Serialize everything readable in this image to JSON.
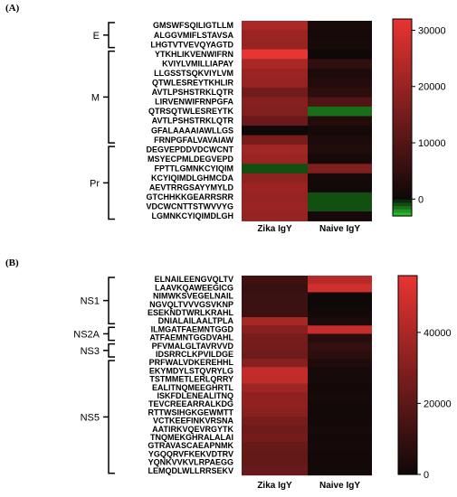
{
  "chart_data": [
    {
      "panel": "(A)",
      "type": "heatmap",
      "columns": [
        "Zika IgY",
        "Naive IgY"
      ],
      "rows": [
        "GMSWFSQILIGTLLM",
        "ALGGVMIFLSTAVSA",
        "LHGTVTVEVQYAGTD",
        "YTKHLIKVENWIFRN",
        "KVIYLVMILLIAPAY",
        "LLGSSTSQKVIYLVM",
        "QTWLESREYTKHLIR",
        "AVTLPSHSTRKLQTR",
        "LIRVENWIFRNPGFA",
        "QTRSQTWLESREYTK",
        "AVTLPSHSTRKLQTR",
        "GFALAAAAIAWLLGS",
        "FRNPGFALVAVAIAW",
        "DEGVEPDDVDCWCNT",
        "MSYECPMLDEGVEPD",
        "FPTTLGMNKCYIQIM",
        "KCYIQIMDLGHMCDA",
        "AEVTRRGSAYYMYLD",
        "GTCHHKKGEARRSRR",
        "VDCWCNTTSTWVVYG",
        "LGMNKCYIQIMDLGH"
      ],
      "groups": [
        {
          "name": "E",
          "start": 0,
          "end": 2
        },
        {
          "name": "M",
          "start": 3,
          "end": 12
        },
        {
          "name": "Pr",
          "start": 13,
          "end": 20
        }
      ],
      "values": [
        [
          22000,
          1500
        ],
        [
          20000,
          1000
        ],
        [
          19500,
          1500
        ],
        [
          31000,
          0
        ],
        [
          22000,
          5000
        ],
        [
          20000,
          2000
        ],
        [
          19000,
          3000
        ],
        [
          14000,
          4000
        ],
        [
          17000,
          9000
        ],
        [
          16000,
          -1500
        ],
        [
          13000,
          3000
        ],
        [
          0,
          1000
        ],
        [
          15000,
          2000
        ],
        [
          21000,
          2500
        ],
        [
          20000,
          1000
        ],
        [
          -1000,
          16000
        ],
        [
          18000,
          1000
        ],
        [
          20000,
          500
        ],
        [
          19000,
          -1000
        ],
        [
          20000,
          -1000
        ],
        [
          19000,
          1000
        ]
      ],
      "colorbar": {
        "min": -3000,
        "max": 32000,
        "ticks": [
          0,
          10000,
          20000,
          30000
        ]
      }
    },
    {
      "panel": "(B)",
      "type": "heatmap",
      "columns": [
        "Zika IgY",
        "Naive IgY"
      ],
      "rows": [
        "ELNAILEENGVQLTV",
        "LAAVKQAWEEGICG",
        "NIMWKSVEGELNAIL",
        "NGVQLTVVVGSVKNP",
        "ESEKNDTWRLKRAHL",
        "DNIALAILAALTPLA",
        "ILMGATFAEMNTGGD",
        "ATFAEMNTGGDVAHL",
        "PFVMALGLTAVRVVD",
        "IDSRRCLKPVILDGE",
        "PRFWALVDKEREHHL",
        "EKYMDYLSTQVRYLG",
        "TSTMMETLERLQRRY",
        "EALITNQMEEGHRTL",
        "ISKFDLENEALITNQ",
        "TEVCREEARRALKDG",
        "RTTWSIHGKGEWMTT",
        "VCTKEEFINKVRSNA",
        "AATIRKVQEVRGYTK",
        "TNQMEKGHRALALAI",
        "GTRAVASCAEAPNMK",
        "YGQQRVFKEKVDTRV",
        "YQNKVVKVLRPAEGG",
        "LEMQDLWLLRRSEKV"
      ],
      "groups": [
        {
          "name": "NS1",
          "start": 0,
          "end": 5
        },
        {
          "name": "NS2A",
          "start": 6,
          "end": 7
        },
        {
          "name": "NS3",
          "start": 8,
          "end": 9
        },
        {
          "name": "NS5",
          "start": 10,
          "end": 23
        }
      ],
      "values": [
        [
          12000,
          42000
        ],
        [
          10000,
          48000
        ],
        [
          11000,
          0
        ],
        [
          11000,
          0
        ],
        [
          11000,
          1000
        ],
        [
          38000,
          3000
        ],
        [
          30000,
          46000
        ],
        [
          26000,
          6000
        ],
        [
          25000,
          9000
        ],
        [
          24000,
          7000
        ],
        [
          30000,
          4000
        ],
        [
          45000,
          2000
        ],
        [
          44000,
          2000
        ],
        [
          36000,
          1000
        ],
        [
          32000,
          2000
        ],
        [
          32000,
          1000
        ],
        [
          30000,
          1000
        ],
        [
          26000,
          1000
        ],
        [
          24000,
          2000
        ],
        [
          25000,
          1000
        ],
        [
          22000,
          2000
        ],
        [
          21000,
          1000
        ],
        [
          21000,
          1000
        ],
        [
          22000,
          1000
        ]
      ],
      "colorbar": {
        "min": 0,
        "max": 56000,
        "ticks": [
          0,
          20000,
          40000
        ]
      }
    }
  ]
}
